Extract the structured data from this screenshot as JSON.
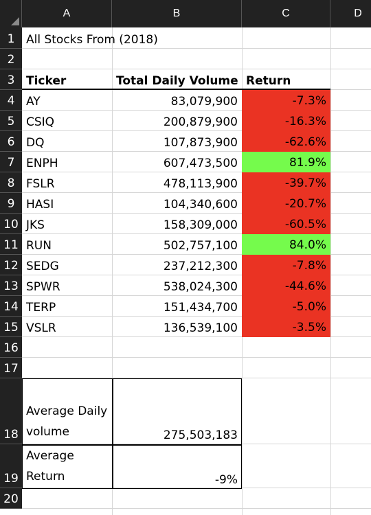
{
  "columns": [
    "A",
    "B",
    "C",
    "D"
  ],
  "rows": [
    "1",
    "2",
    "3",
    "4",
    "5",
    "6",
    "7",
    "8",
    "9",
    "10",
    "11",
    "12",
    "13",
    "14",
    "15",
    "16",
    "17",
    "18",
    "19",
    "20"
  ],
  "title": "All Stocks From (2018)",
  "headers": {
    "ticker": "Ticker",
    "volume": "Total Daily Volume",
    "return": "Return"
  },
  "stocks": [
    {
      "ticker": "AY",
      "volume": "83,079,900",
      "return": "-7.3%",
      "status": "negative"
    },
    {
      "ticker": "CSIQ",
      "volume": "200,879,900",
      "return": "-16.3%",
      "status": "negative"
    },
    {
      "ticker": "DQ",
      "volume": "107,873,900",
      "return": "-62.6%",
      "status": "negative"
    },
    {
      "ticker": "ENPH",
      "volume": "607,473,500",
      "return": "81.9%",
      "status": "positive"
    },
    {
      "ticker": "FSLR",
      "volume": "478,113,900",
      "return": "-39.7%",
      "status": "negative"
    },
    {
      "ticker": "HASI",
      "volume": "104,340,600",
      "return": "-20.7%",
      "status": "negative"
    },
    {
      "ticker": "JKS",
      "volume": "158,309,000",
      "return": "-60.5%",
      "status": "negative"
    },
    {
      "ticker": "RUN",
      "volume": "502,757,100",
      "return": "84.0%",
      "status": "positive"
    },
    {
      "ticker": "SEDG",
      "volume": "237,212,300",
      "return": "-7.8%",
      "status": "negative"
    },
    {
      "ticker": "SPWR",
      "volume": "538,024,300",
      "return": "-44.6%",
      "status": "negative"
    },
    {
      "ticker": "TERP",
      "volume": "151,434,700",
      "return": "-5.0%",
      "status": "negative"
    },
    {
      "ticker": "VSLR",
      "volume": "136,539,100",
      "return": "-3.5%",
      "status": "negative"
    }
  ],
  "summary": {
    "avg_volume_label": "Average Daily volume",
    "avg_volume_value": "275,503,183",
    "avg_return_label": "Average Return",
    "avg_return_value": "-9%"
  },
  "colors": {
    "negative": "#ea3323",
    "positive": "#75fb4c"
  }
}
